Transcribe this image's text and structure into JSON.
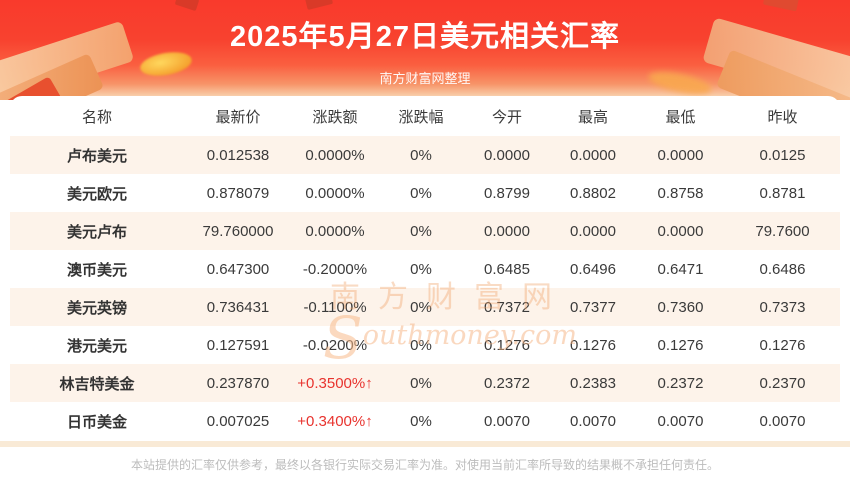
{
  "banner": {
    "title": "2025年5月27日美元相关汇率",
    "subtitle": "南方财富网整理"
  },
  "table": {
    "headers": [
      "名称",
      "最新价",
      "涨跌额",
      "涨跌幅",
      "今开",
      "最高",
      "最低",
      "昨收"
    ],
    "rows": [
      {
        "cells": [
          "卢布美元",
          "0.012538",
          "0.0000%",
          "0%",
          "0.0000",
          "0.0000",
          "0.0000",
          "0.0125"
        ]
      },
      {
        "cells": [
          "美元欧元",
          "0.878079",
          "0.0000%",
          "0%",
          "0.8799",
          "0.8802",
          "0.8758",
          "0.8781"
        ]
      },
      {
        "cells": [
          "美元卢布",
          "79.760000",
          "0.0000%",
          "0%",
          "0.0000",
          "0.0000",
          "0.0000",
          "79.7600"
        ]
      },
      {
        "cells": [
          "澳币美元",
          "0.647300",
          "-0.2000%",
          "0%",
          "0.6485",
          "0.6496",
          "0.6471",
          "0.6486"
        ]
      },
      {
        "cells": [
          "美元英镑",
          "0.736431",
          "-0.1100%",
          "0%",
          "0.7372",
          "0.7377",
          "0.7360",
          "0.7373"
        ]
      },
      {
        "cells": [
          "港元美元",
          "0.127591",
          "-0.0200%",
          "0%",
          "0.1276",
          "0.1276",
          "0.1276",
          "0.1276"
        ]
      },
      {
        "cells": [
          "林吉特美金",
          "0.237870",
          "+0.3500%↑",
          "0%",
          "0.2372",
          "0.2383",
          "0.2372",
          "0.2370"
        ]
      },
      {
        "cells": [
          "日币美金",
          "0.007025",
          "+0.3400%↑",
          "0%",
          "0.0070",
          "0.0070",
          "0.0070",
          "0.0070"
        ]
      }
    ]
  },
  "watermark": {
    "cn": "南方财富网",
    "en_s": "S",
    "en_rest": "outhmoney.com"
  },
  "footer": {
    "disclaimer": "本站提供的汇率仅供参考，最终以各银行实际交易汇率为准。对使用当前汇率所导致的结果概不承担任何责任。"
  },
  "colors": {
    "banner_red": "#f93a2c",
    "stripe_peach": "#fdf3ea",
    "up_red": "#e8332e",
    "header_gray": "#a7a7a7",
    "body_text": "#3a3a3a"
  },
  "chart_data": {
    "type": "table",
    "title": "2025年5月27日美元相关汇率",
    "columns": [
      "名称",
      "最新价",
      "涨跌额",
      "涨跌幅",
      "今开",
      "最高",
      "最低",
      "昨收"
    ],
    "rows": [
      [
        "卢布美元",
        0.012538,
        "0.0000%",
        "0%",
        0.0,
        0.0,
        0.0,
        0.0125
      ],
      [
        "美元欧元",
        0.878079,
        "0.0000%",
        "0%",
        0.8799,
        0.8802,
        0.8758,
        0.8781
      ],
      [
        "美元卢布",
        79.76,
        "0.0000%",
        "0%",
        0.0,
        0.0,
        0.0,
        79.76
      ],
      [
        "澳币美元",
        0.6473,
        "-0.2000%",
        "0%",
        0.6485,
        0.6496,
        0.6471,
        0.6486
      ],
      [
        "美元英镑",
        0.736431,
        "-0.1100%",
        "0%",
        0.7372,
        0.7377,
        0.736,
        0.7373
      ],
      [
        "港元美元",
        0.127591,
        "-0.0200%",
        "0%",
        0.1276,
        0.1276,
        0.1276,
        0.1276
      ],
      [
        "林吉特美金",
        0.23787,
        "+0.3500%",
        "0%",
        0.2372,
        0.2383,
        0.2372,
        0.237
      ],
      [
        "日币美金",
        0.007025,
        "+0.3400%",
        "0%",
        0.007,
        0.007,
        0.007,
        0.007
      ]
    ]
  }
}
